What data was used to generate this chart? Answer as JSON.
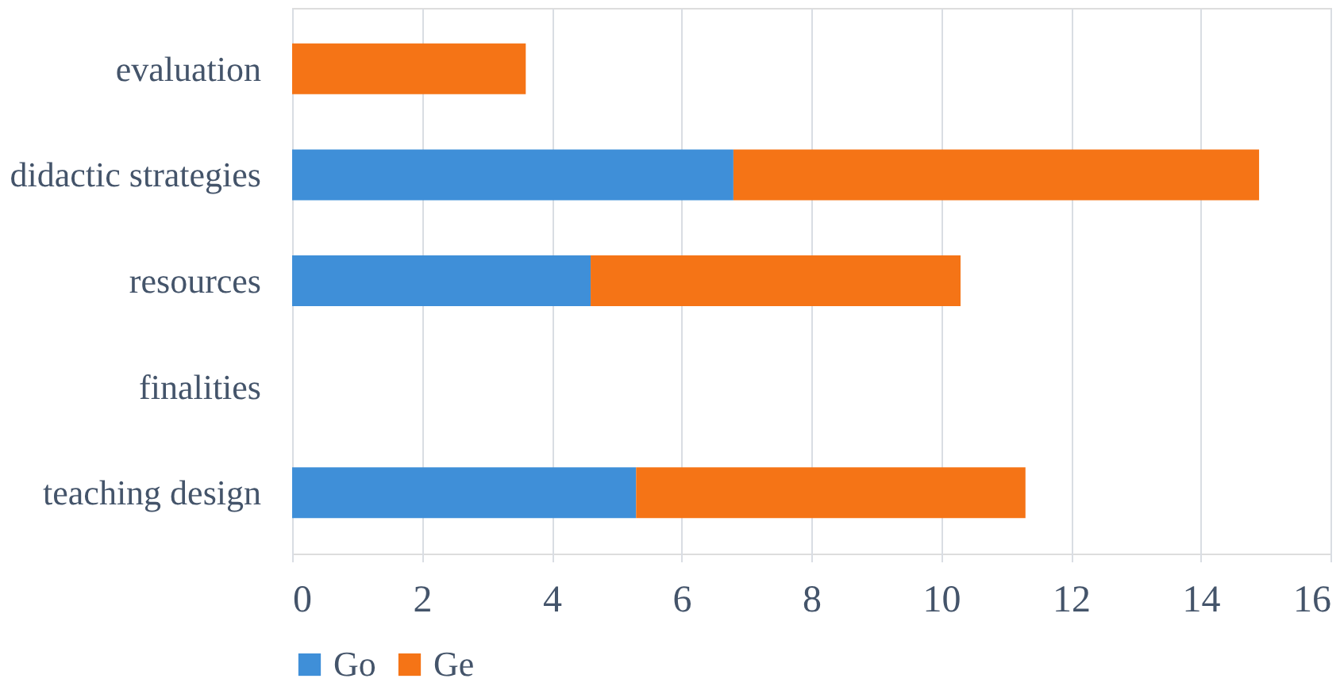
{
  "chart_data": {
    "type": "bar",
    "orientation": "horizontal",
    "stacked": true,
    "categories": [
      "evaluation",
      "didactic strategies",
      "resources",
      "finalities",
      "teaching design"
    ],
    "series": [
      {
        "name": "Go",
        "color": "#3f8fd8",
        "values": [
          0,
          6.8,
          4.6,
          0,
          5.3
        ]
      },
      {
        "name": "Ge",
        "color": "#f57416",
        "values": [
          3.6,
          8.1,
          5.7,
          0,
          6.0
        ]
      }
    ],
    "xlim": [
      0,
      16
    ],
    "xticks": [
      0,
      2,
      4,
      6,
      8,
      10,
      12,
      14,
      16
    ],
    "grid": "x",
    "legend": "bottom"
  }
}
